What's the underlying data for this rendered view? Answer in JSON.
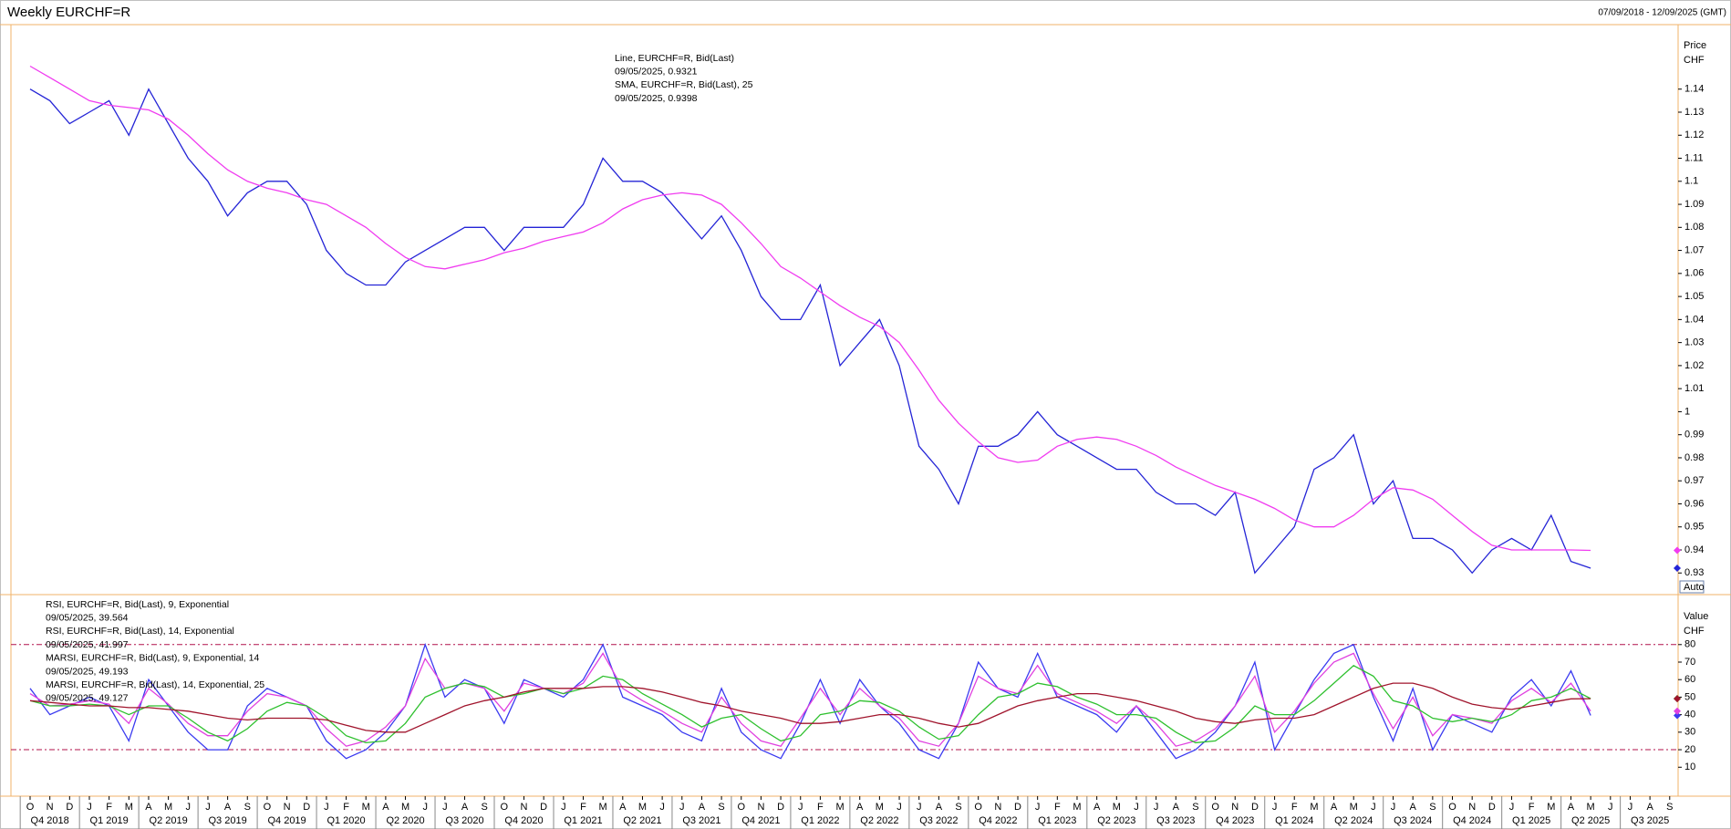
{
  "x_axis": {
    "months": [
      "O",
      "N",
      "D",
      "J",
      "F",
      "M",
      "A",
      "M",
      "J",
      "J",
      "A",
      "S",
      "O",
      "N",
      "D",
      "J",
      "F",
      "M",
      "A",
      "M",
      "J",
      "J",
      "A",
      "S",
      "O",
      "N",
      "D",
      "J",
      "F",
      "M",
      "A",
      "M",
      "J",
      "J",
      "A",
      "S",
      "O",
      "N",
      "D",
      "J",
      "F",
      "M",
      "A",
      "M",
      "J",
      "J",
      "A",
      "S",
      "O",
      "N",
      "D",
      "J",
      "F",
      "M",
      "A",
      "M",
      "J",
      "J",
      "A",
      "S",
      "O",
      "N",
      "D",
      "J",
      "F",
      "M",
      "A",
      "M",
      "J",
      "J",
      "A",
      "S",
      "O",
      "N",
      "D",
      "J",
      "F",
      "M",
      "A",
      "M",
      "J",
      "J",
      "A",
      "S"
    ],
    "quarters": [
      "Q4 2018",
      "Q1 2019",
      "Q2 2019",
      "Q3 2019",
      "Q4 2019",
      "Q1 2020",
      "Q2 2020",
      "Q3 2020",
      "Q4 2020",
      "Q1 2021",
      "Q2 2021",
      "Q3 2021",
      "Q4 2021",
      "Q1 2022",
      "Q2 2022",
      "Q3 2022",
      "Q4 2022",
      "Q1 2023",
      "Q2 2023",
      "Q3 2023",
      "Q4 2023",
      "Q1 2024",
      "Q2 2024",
      "Q3 2024",
      "Q4 2024",
      "Q1 2025",
      "Q2 2025",
      "Q3 2025"
    ]
  },
  "date_range": "07/09/2018 - 12/09/2025 (GMT)",
  "chart_data": [
    {
      "type": "line",
      "title": "Weekly EURCHF=R",
      "y_label": "Price",
      "y_unit": "CHF",
      "scale_button": "Auto",
      "ylim": [
        0.921,
        1.168
      ],
      "yticks": [
        0.93,
        0.94,
        0.95,
        0.96,
        0.97,
        0.98,
        0.99,
        1,
        1.01,
        1.02,
        1.03,
        1.04,
        1.05,
        1.06,
        1.07,
        1.08,
        1.09,
        1.1,
        1.11,
        1.12,
        1.13,
        1.14
      ],
      "series": [
        {
          "name": "Line, EURCHF=R, Bid(Last)",
          "last_label": "09/05/2025, 0.9321",
          "color": "#2424d6",
          "values": [
            1.14,
            1.135,
            1.125,
            1.13,
            1.135,
            1.12,
            1.14,
            1.125,
            1.11,
            1.1,
            1.085,
            1.095,
            1.1,
            1.1,
            1.09,
            1.07,
            1.06,
            1.055,
            1.055,
            1.065,
            1.07,
            1.075,
            1.08,
            1.08,
            1.07,
            1.08,
            1.08,
            1.08,
            1.09,
            1.11,
            1.1,
            1.1,
            1.095,
            1.085,
            1.075,
            1.085,
            1.07,
            1.05,
            1.04,
            1.04,
            1.055,
            1.02,
            1.03,
            1.04,
            1.02,
            0.985,
            0.975,
            0.96,
            0.985,
            0.985,
            0.99,
            1.0,
            0.99,
            0.985,
            0.98,
            0.975,
            0.975,
            0.965,
            0.96,
            0.96,
            0.955,
            0.965,
            0.93,
            0.94,
            0.95,
            0.975,
            0.98,
            0.99,
            0.96,
            0.97,
            0.945,
            0.945,
            0.94,
            0.93,
            0.94,
            0.945,
            0.94,
            0.955,
            0.935,
            0.9321,
            null,
            null,
            null,
            null
          ]
        },
        {
          "name": "SMA, EURCHF=R, Bid(Last),  25",
          "last_label": "09/05/2025, 0.9398",
          "color": "#f03cf0",
          "values": [
            1.15,
            1.145,
            1.14,
            1.135,
            1.133,
            1.132,
            1.131,
            1.127,
            1.12,
            1.112,
            1.105,
            1.1,
            1.097,
            1.095,
            1.092,
            1.09,
            1.085,
            1.08,
            1.073,
            1.067,
            1.063,
            1.062,
            1.064,
            1.066,
            1.069,
            1.071,
            1.074,
            1.076,
            1.078,
            1.082,
            1.088,
            1.092,
            1.094,
            1.095,
            1.094,
            1.09,
            1.082,
            1.073,
            1.063,
            1.058,
            1.052,
            1.046,
            1.041,
            1.037,
            1.03,
            1.018,
            1.005,
            0.995,
            0.987,
            0.98,
            0.978,
            0.979,
            0.985,
            0.988,
            0.989,
            0.988,
            0.985,
            0.981,
            0.976,
            0.972,
            0.968,
            0.965,
            0.962,
            0.958,
            0.953,
            0.95,
            0.95,
            0.955,
            0.962,
            0.967,
            0.966,
            0.962,
            0.955,
            0.948,
            0.942,
            0.94,
            0.94,
            0.94,
            0.94,
            0.9398,
            null,
            null,
            null,
            null
          ]
        }
      ]
    },
    {
      "type": "line",
      "y_label": "Value",
      "y_unit": "CHF",
      "ylim": [
        -6,
        108
      ],
      "yticks": [
        10,
        20,
        30,
        40,
        50,
        60,
        70,
        80
      ],
      "ref_lines": [
        20,
        80
      ],
      "series": [
        {
          "name": "RSI, EURCHF=R, Bid(Last),  9, Exponential",
          "last_label": "09/05/2025, 39.564",
          "color": "#3a3af0",
          "values": [
            55,
            40,
            45,
            50,
            45,
            25,
            60,
            45,
            30,
            20,
            20,
            45,
            55,
            50,
            45,
            25,
            15,
            20,
            30,
            45,
            80,
            50,
            60,
            55,
            35,
            60,
            55,
            50,
            60,
            80,
            50,
            45,
            40,
            30,
            25,
            55,
            30,
            20,
            15,
            35,
            60,
            35,
            60,
            45,
            35,
            20,
            15,
            35,
            70,
            55,
            50,
            75,
            50,
            45,
            40,
            30,
            45,
            30,
            15,
            20,
            30,
            45,
            70,
            20,
            40,
            60,
            75,
            80,
            50,
            25,
            55,
            20,
            40,
            35,
            30,
            50,
            60,
            45,
            65,
            39.564,
            null,
            null,
            null,
            null
          ]
        },
        {
          "name": "RSI, EURCHF=R, Bid(Last),  14, Exponential",
          "last_label": "09/05/2025, 41.997",
          "color": "#e040e0",
          "values": [
            52,
            45,
            46,
            48,
            46,
            35,
            55,
            46,
            35,
            28,
            28,
            42,
            52,
            50,
            45,
            32,
            22,
            25,
            33,
            45,
            72,
            55,
            58,
            55,
            42,
            58,
            55,
            52,
            58,
            75,
            55,
            48,
            42,
            35,
            30,
            50,
            35,
            25,
            22,
            38,
            55,
            40,
            55,
            45,
            38,
            25,
            22,
            35,
            62,
            55,
            52,
            68,
            52,
            47,
            42,
            35,
            45,
            35,
            22,
            25,
            32,
            45,
            62,
            30,
            42,
            58,
            70,
            75,
            52,
            32,
            50,
            28,
            40,
            38,
            35,
            48,
            55,
            47,
            58,
            41.997,
            null,
            null,
            null,
            null
          ]
        },
        {
          "name": "MARSI, EURCHF=R, Bid(Last),  9, Exponential, 14",
          "last_label": "09/05/2025, 49.193",
          "color": "#2ec02e",
          "values": [
            48,
            45,
            45,
            46,
            45,
            40,
            45,
            45,
            38,
            30,
            25,
            32,
            42,
            47,
            45,
            38,
            28,
            24,
            25,
            35,
            50,
            55,
            58,
            56,
            50,
            52,
            55,
            52,
            55,
            62,
            60,
            52,
            46,
            40,
            33,
            38,
            40,
            32,
            25,
            28,
            40,
            42,
            48,
            47,
            42,
            33,
            26,
            28,
            40,
            50,
            52,
            58,
            56,
            50,
            46,
            40,
            40,
            38,
            30,
            24,
            25,
            33,
            45,
            40,
            40,
            48,
            58,
            68,
            62,
            48,
            45,
            38,
            36,
            38,
            36,
            40,
            48,
            50,
            55,
            49.193,
            null,
            null,
            null,
            null
          ]
        },
        {
          "name": "MARSI, EURCHF=R, Bid(Last),  14, Exponential, 25",
          "last_label": "09/05/2025, 49.127",
          "color": "#a0142c",
          "values": [
            48,
            47,
            46,
            45,
            45,
            44,
            44,
            43,
            42,
            40,
            38,
            37,
            38,
            38,
            38,
            37,
            34,
            31,
            30,
            30,
            35,
            40,
            45,
            48,
            50,
            53,
            55,
            55,
            55,
            56,
            56,
            55,
            53,
            50,
            47,
            45,
            42,
            40,
            38,
            35,
            35,
            36,
            38,
            40,
            40,
            38,
            35,
            33,
            35,
            40,
            45,
            48,
            50,
            52,
            52,
            50,
            48,
            45,
            42,
            38,
            36,
            35,
            37,
            38,
            38,
            40,
            45,
            50,
            55,
            58,
            58,
            55,
            50,
            46,
            44,
            43,
            45,
            47,
            49,
            49.127,
            null,
            null,
            null,
            null
          ]
        }
      ]
    }
  ]
}
